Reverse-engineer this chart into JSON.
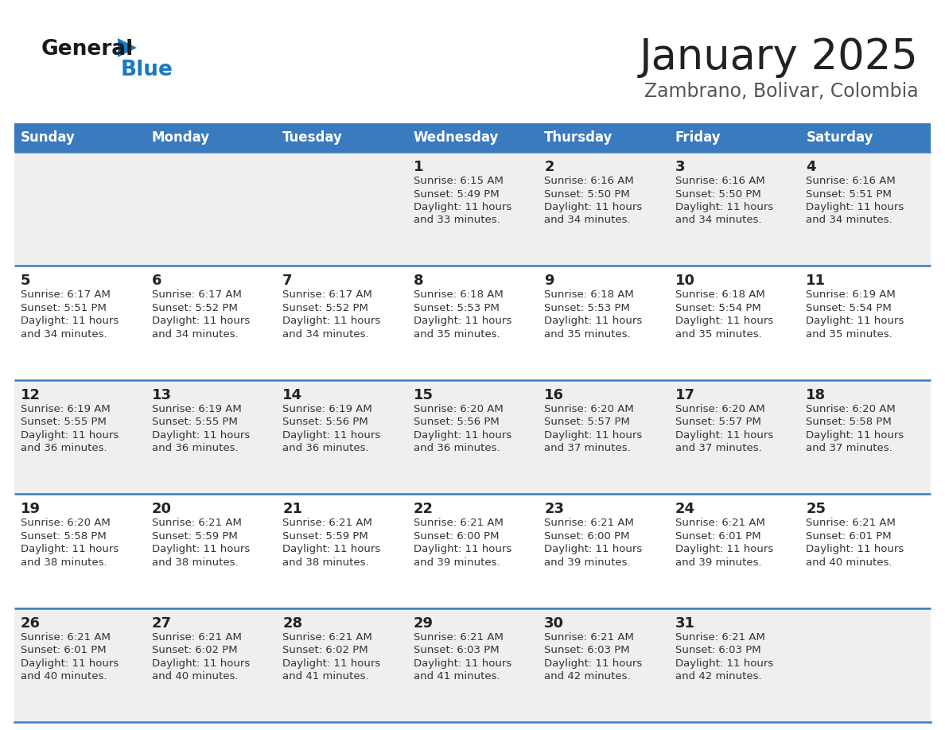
{
  "title": "January 2025",
  "subtitle": "Zambrano, Bolivar, Colombia",
  "days_of_week": [
    "Sunday",
    "Monday",
    "Tuesday",
    "Wednesday",
    "Thursday",
    "Friday",
    "Saturday"
  ],
  "header_bg": "#3a7abf",
  "header_text": "#ffffff",
  "row_bg_odd": "#efefef",
  "row_bg_even": "#ffffff",
  "cell_border_color": "#3a7abf",
  "title_color": "#222222",
  "subtitle_color": "#555555",
  "day_num_color": "#222222",
  "info_color": "#333333",
  "logo_general_color": "#1a1a1a",
  "logo_blue_color": "#1a7abf",
  "calendar": [
    [
      {
        "day": "",
        "sunrise": "",
        "sunset": "",
        "daylight_line1": "",
        "daylight_line2": ""
      },
      {
        "day": "",
        "sunrise": "",
        "sunset": "",
        "daylight_line1": "",
        "daylight_line2": ""
      },
      {
        "day": "",
        "sunrise": "",
        "sunset": "",
        "daylight_line1": "",
        "daylight_line2": ""
      },
      {
        "day": "1",
        "sunrise": "6:15 AM",
        "sunset": "5:49 PM",
        "daylight_line1": "Daylight: 11 hours",
        "daylight_line2": "and 33 minutes."
      },
      {
        "day": "2",
        "sunrise": "6:16 AM",
        "sunset": "5:50 PM",
        "daylight_line1": "Daylight: 11 hours",
        "daylight_line2": "and 34 minutes."
      },
      {
        "day": "3",
        "sunrise": "6:16 AM",
        "sunset": "5:50 PM",
        "daylight_line1": "Daylight: 11 hours",
        "daylight_line2": "and 34 minutes."
      },
      {
        "day": "4",
        "sunrise": "6:16 AM",
        "sunset": "5:51 PM",
        "daylight_line1": "Daylight: 11 hours",
        "daylight_line2": "and 34 minutes."
      }
    ],
    [
      {
        "day": "5",
        "sunrise": "6:17 AM",
        "sunset": "5:51 PM",
        "daylight_line1": "Daylight: 11 hours",
        "daylight_line2": "and 34 minutes."
      },
      {
        "day": "6",
        "sunrise": "6:17 AM",
        "sunset": "5:52 PM",
        "daylight_line1": "Daylight: 11 hours",
        "daylight_line2": "and 34 minutes."
      },
      {
        "day": "7",
        "sunrise": "6:17 AM",
        "sunset": "5:52 PM",
        "daylight_line1": "Daylight: 11 hours",
        "daylight_line2": "and 34 minutes."
      },
      {
        "day": "8",
        "sunrise": "6:18 AM",
        "sunset": "5:53 PM",
        "daylight_line1": "Daylight: 11 hours",
        "daylight_line2": "and 35 minutes."
      },
      {
        "day": "9",
        "sunrise": "6:18 AM",
        "sunset": "5:53 PM",
        "daylight_line1": "Daylight: 11 hours",
        "daylight_line2": "and 35 minutes."
      },
      {
        "day": "10",
        "sunrise": "6:18 AM",
        "sunset": "5:54 PM",
        "daylight_line1": "Daylight: 11 hours",
        "daylight_line2": "and 35 minutes."
      },
      {
        "day": "11",
        "sunrise": "6:19 AM",
        "sunset": "5:54 PM",
        "daylight_line1": "Daylight: 11 hours",
        "daylight_line2": "and 35 minutes."
      }
    ],
    [
      {
        "day": "12",
        "sunrise": "6:19 AM",
        "sunset": "5:55 PM",
        "daylight_line1": "Daylight: 11 hours",
        "daylight_line2": "and 36 minutes."
      },
      {
        "day": "13",
        "sunrise": "6:19 AM",
        "sunset": "5:55 PM",
        "daylight_line1": "Daylight: 11 hours",
        "daylight_line2": "and 36 minutes."
      },
      {
        "day": "14",
        "sunrise": "6:19 AM",
        "sunset": "5:56 PM",
        "daylight_line1": "Daylight: 11 hours",
        "daylight_line2": "and 36 minutes."
      },
      {
        "day": "15",
        "sunrise": "6:20 AM",
        "sunset": "5:56 PM",
        "daylight_line1": "Daylight: 11 hours",
        "daylight_line2": "and 36 minutes."
      },
      {
        "day": "16",
        "sunrise": "6:20 AM",
        "sunset": "5:57 PM",
        "daylight_line1": "Daylight: 11 hours",
        "daylight_line2": "and 37 minutes."
      },
      {
        "day": "17",
        "sunrise": "6:20 AM",
        "sunset": "5:57 PM",
        "daylight_line1": "Daylight: 11 hours",
        "daylight_line2": "and 37 minutes."
      },
      {
        "day": "18",
        "sunrise": "6:20 AM",
        "sunset": "5:58 PM",
        "daylight_line1": "Daylight: 11 hours",
        "daylight_line2": "and 37 minutes."
      }
    ],
    [
      {
        "day": "19",
        "sunrise": "6:20 AM",
        "sunset": "5:58 PM",
        "daylight_line1": "Daylight: 11 hours",
        "daylight_line2": "and 38 minutes."
      },
      {
        "day": "20",
        "sunrise": "6:21 AM",
        "sunset": "5:59 PM",
        "daylight_line1": "Daylight: 11 hours",
        "daylight_line2": "and 38 minutes."
      },
      {
        "day": "21",
        "sunrise": "6:21 AM",
        "sunset": "5:59 PM",
        "daylight_line1": "Daylight: 11 hours",
        "daylight_line2": "and 38 minutes."
      },
      {
        "day": "22",
        "sunrise": "6:21 AM",
        "sunset": "6:00 PM",
        "daylight_line1": "Daylight: 11 hours",
        "daylight_line2": "and 39 minutes."
      },
      {
        "day": "23",
        "sunrise": "6:21 AM",
        "sunset": "6:00 PM",
        "daylight_line1": "Daylight: 11 hours",
        "daylight_line2": "and 39 minutes."
      },
      {
        "day": "24",
        "sunrise": "6:21 AM",
        "sunset": "6:01 PM",
        "daylight_line1": "Daylight: 11 hours",
        "daylight_line2": "and 39 minutes."
      },
      {
        "day": "25",
        "sunrise": "6:21 AM",
        "sunset": "6:01 PM",
        "daylight_line1": "Daylight: 11 hours",
        "daylight_line2": "and 40 minutes."
      }
    ],
    [
      {
        "day": "26",
        "sunrise": "6:21 AM",
        "sunset": "6:01 PM",
        "daylight_line1": "Daylight: 11 hours",
        "daylight_line2": "and 40 minutes."
      },
      {
        "day": "27",
        "sunrise": "6:21 AM",
        "sunset": "6:02 PM",
        "daylight_line1": "Daylight: 11 hours",
        "daylight_line2": "and 40 minutes."
      },
      {
        "day": "28",
        "sunrise": "6:21 AM",
        "sunset": "6:02 PM",
        "daylight_line1": "Daylight: 11 hours",
        "daylight_line2": "and 41 minutes."
      },
      {
        "day": "29",
        "sunrise": "6:21 AM",
        "sunset": "6:03 PM",
        "daylight_line1": "Daylight: 11 hours",
        "daylight_line2": "and 41 minutes."
      },
      {
        "day": "30",
        "sunrise": "6:21 AM",
        "sunset": "6:03 PM",
        "daylight_line1": "Daylight: 11 hours",
        "daylight_line2": "and 42 minutes."
      },
      {
        "day": "31",
        "sunrise": "6:21 AM",
        "sunset": "6:03 PM",
        "daylight_line1": "Daylight: 11 hours",
        "daylight_line2": "and 42 minutes."
      },
      {
        "day": "",
        "sunrise": "",
        "sunset": "",
        "daylight_line1": "",
        "daylight_line2": ""
      }
    ]
  ]
}
